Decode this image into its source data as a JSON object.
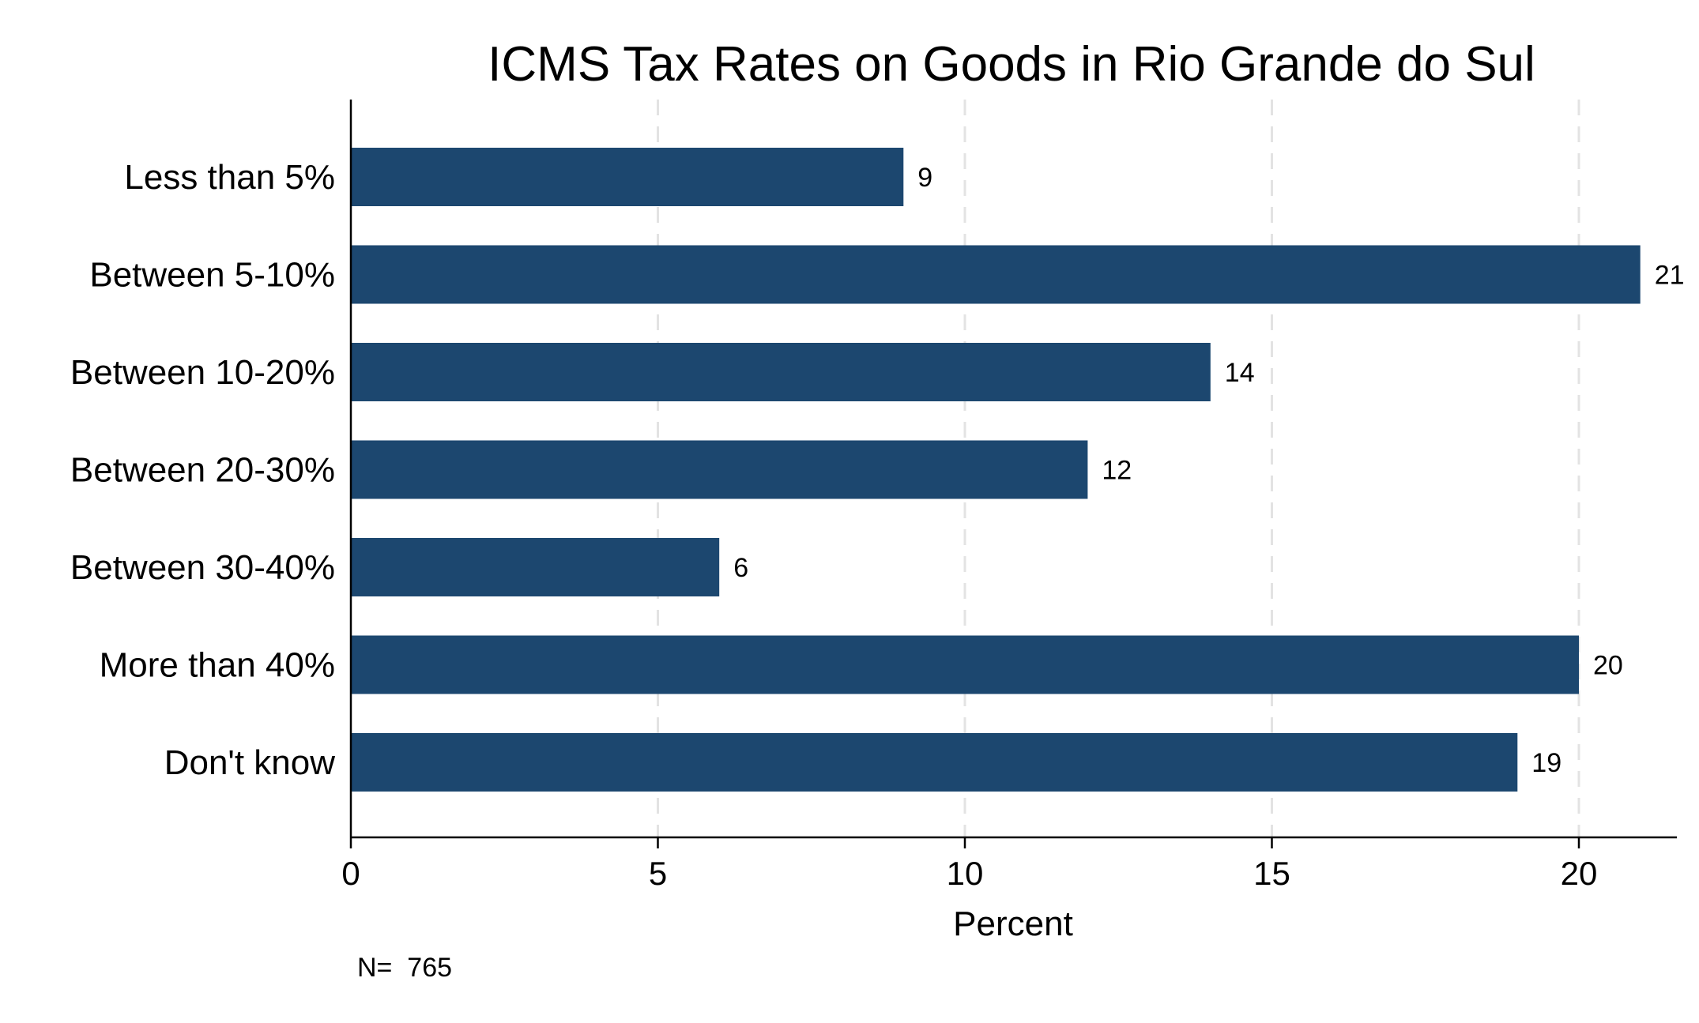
{
  "chart_data": {
    "type": "bar",
    "orientation": "horizontal",
    "title": "ICMS Tax Rates on Goods in Rio Grande do Sul",
    "categories": [
      "Less than 5%",
      "Between 5-10%",
      "Between 10-20%",
      "Between 20-30%",
      "Between 30-40%",
      "More than 40%",
      "Don't know"
    ],
    "values": [
      9,
      21,
      14,
      12,
      6,
      20,
      19
    ],
    "value_labels": [
      "9",
      "21",
      "14",
      "12",
      "6",
      "20",
      "19"
    ],
    "xlabel": "Percent",
    "ylabel": "",
    "xlim": [
      0,
      21.6
    ],
    "xticks": [
      0,
      5,
      10,
      15,
      20
    ],
    "xtick_labels": [
      "0",
      "5",
      "10",
      "15",
      "20"
    ],
    "grid": "vertical dashed at ticks",
    "legend": "none",
    "bar_color": "#1c476f",
    "note": "N=  765"
  }
}
